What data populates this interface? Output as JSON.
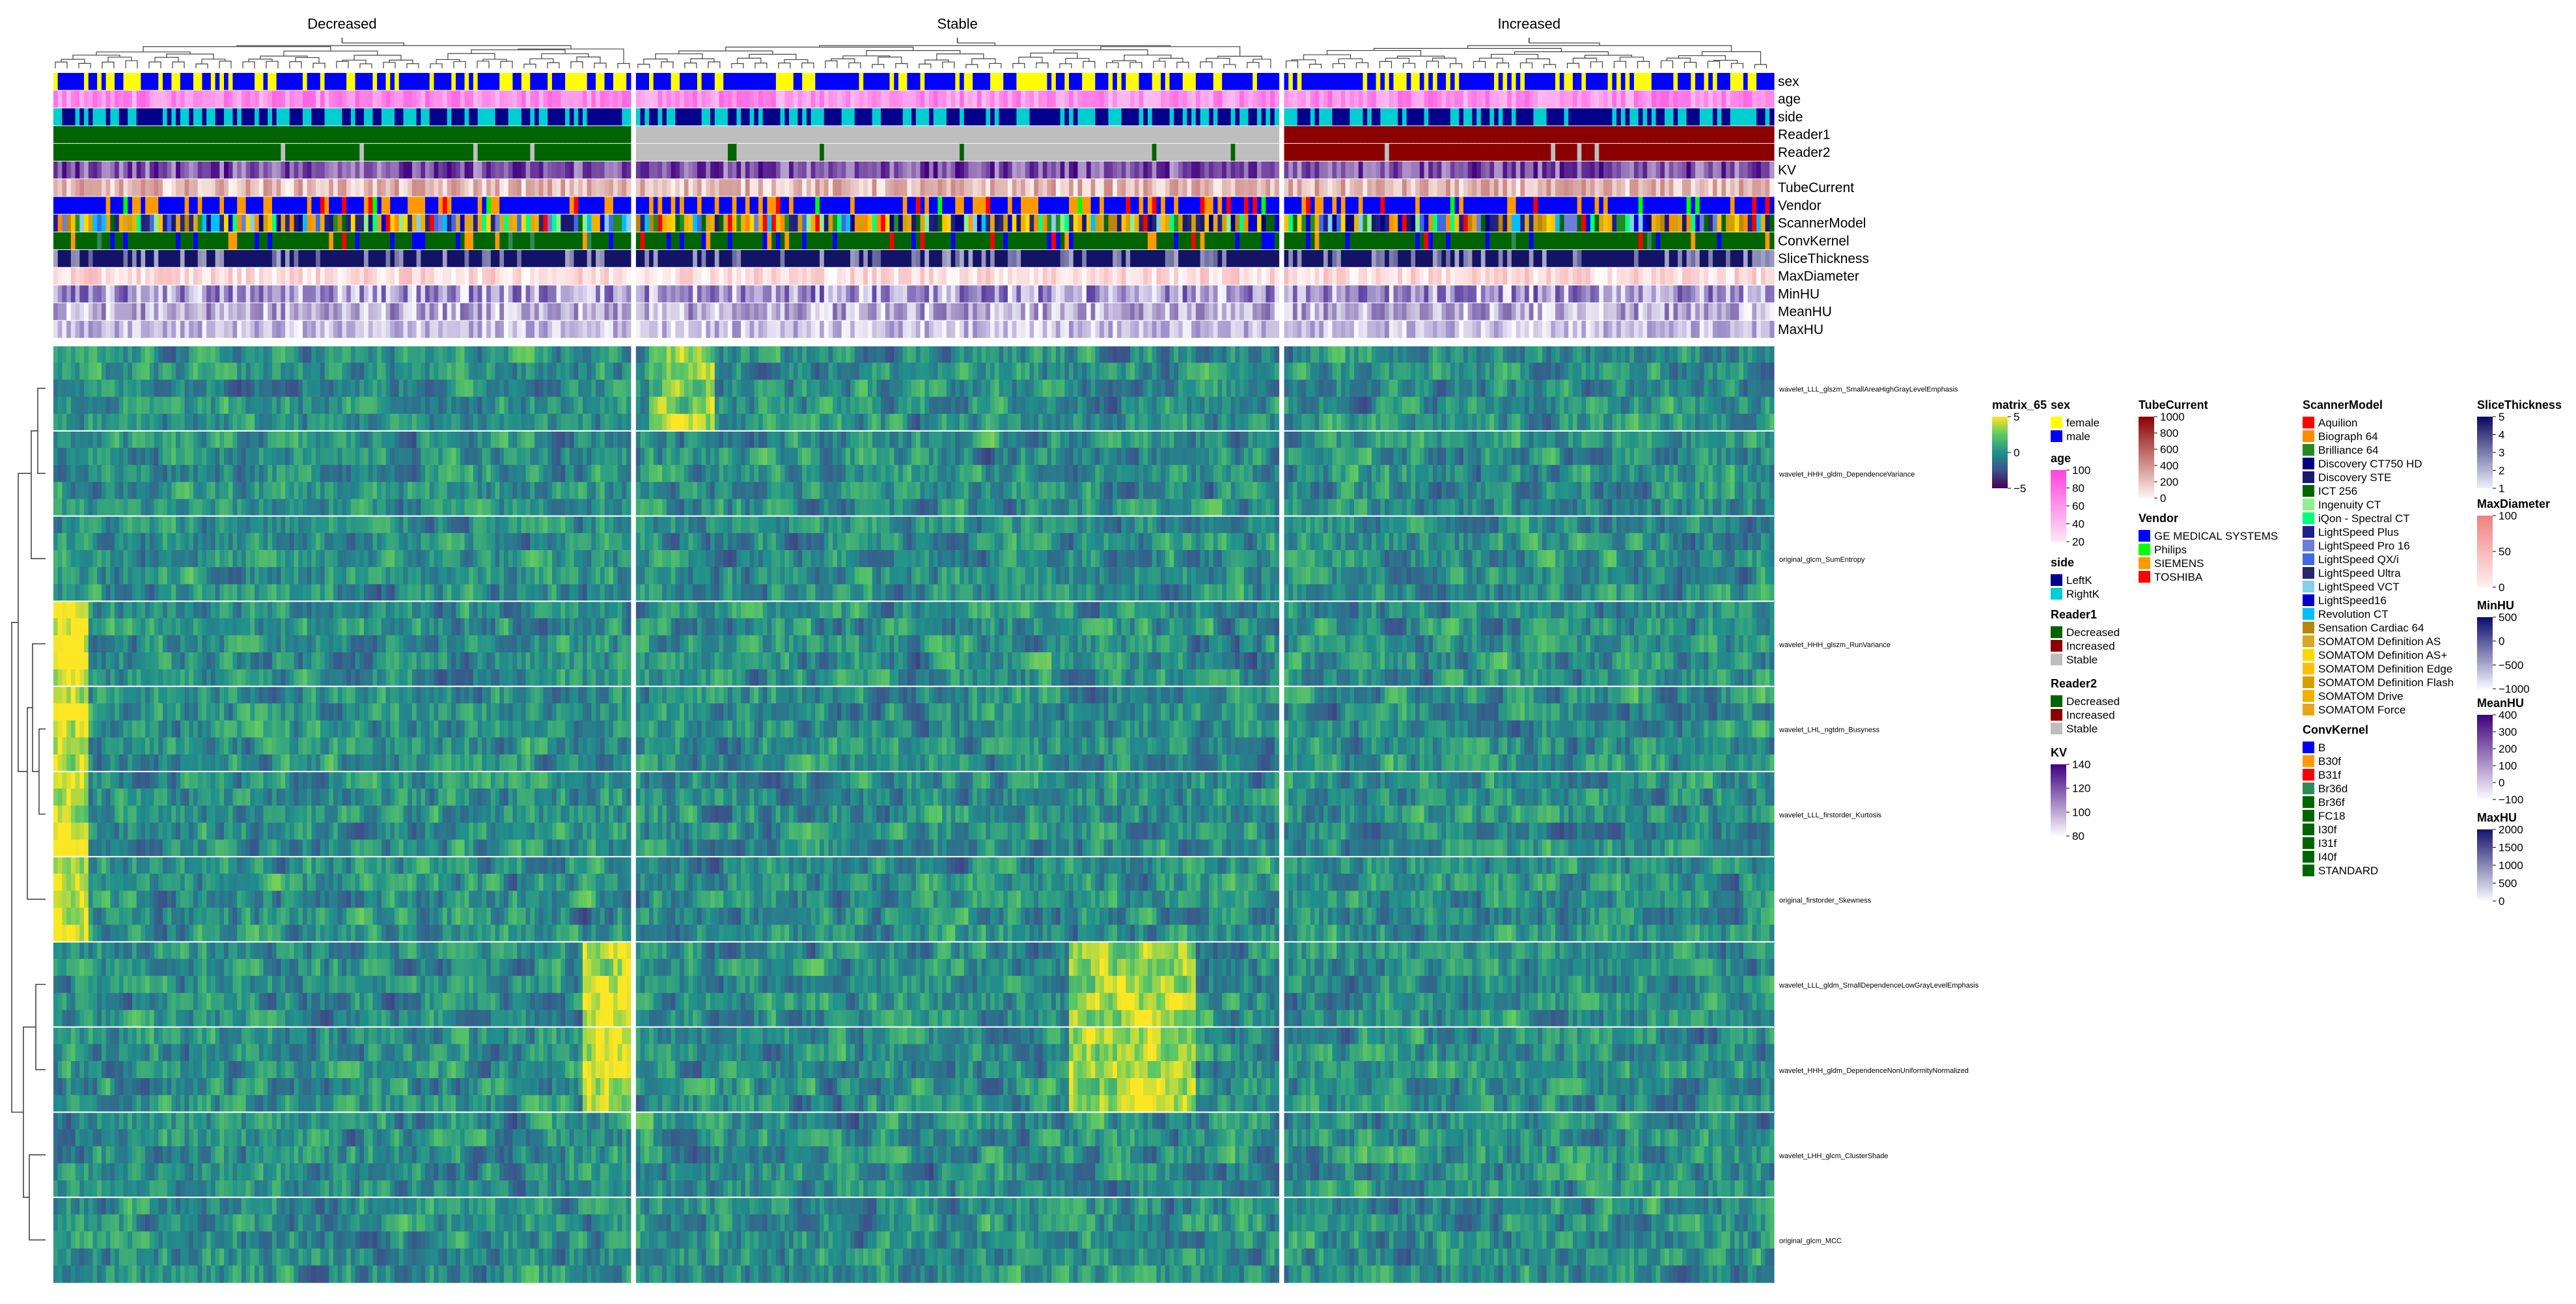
{
  "chart_data": {
    "type": "heatmap",
    "title": "",
    "column_groups": [
      "Decreased",
      "Stable",
      "Increased"
    ],
    "column_counts": [
      132,
      147,
      112
    ],
    "annotation_tracks": [
      "sex",
      "age",
      "side",
      "Reader1",
      "Reader2",
      "KV",
      "TubeCurrent",
      "Vendor",
      "ScannerModel",
      "ConvKernel",
      "SliceThickness",
      "MaxDiameter",
      "MinHU",
      "MeanHU",
      "MaxHU"
    ],
    "rows": [
      "wavelet_LLL_glszm_SmallAreaHighGrayLevelEmphasis",
      "wavelet_HHH_gldm_DependenceVariance",
      "original_glcm_SumEntropy",
      "wavelet_HHH_glszm_RunVariance",
      "wavelet_LHL_ngtdm_Busyness",
      "wavelet_LLL_firstorder_Kurtosis",
      "original_firstorder_Skewness",
      "wavelet_LLL_gldm_SmallDependenceLowGrayLevelEmphasis",
      "wavelet_HHH_gldm_DependenceNonUniformityNormalized",
      "wavelet_LHH_glcm_ClusterShade",
      "original_glcm_MCC"
    ],
    "value_scale": {
      "name": "matrix_65",
      "min": -5,
      "max": 5,
      "ticks": [
        "5",
        "0",
        "−5"
      ]
    }
  },
  "legends": {
    "sex": {
      "title": "sex",
      "items": [
        {
          "label": "female",
          "color": "#FFFF00"
        },
        {
          "label": "male",
          "color": "#0000FF"
        }
      ]
    },
    "age": {
      "title": "age",
      "ticks": [
        "100",
        "80",
        "60",
        "40",
        "20"
      ],
      "colors": [
        "#FF44DD",
        "#FFE6F8"
      ]
    },
    "side": {
      "title": "side",
      "items": [
        {
          "label": "LeftK",
          "color": "#00008B"
        },
        {
          "label": "RightK",
          "color": "#00CED1"
        }
      ]
    },
    "reader1": {
      "title": "Reader1",
      "items": [
        {
          "label": "Decreased",
          "color": "#006400"
        },
        {
          "label": "Increased",
          "color": "#8B0000"
        },
        {
          "label": "Stable",
          "color": "#BEBEBE"
        }
      ]
    },
    "reader2": {
      "title": "Reader2",
      "items": [
        {
          "label": "Decreased",
          "color": "#006400"
        },
        {
          "label": "Increased",
          "color": "#8B0000"
        },
        {
          "label": "Stable",
          "color": "#BEBEBE"
        }
      ]
    },
    "kv": {
      "title": "KV",
      "ticks": [
        "140",
        "120",
        "100",
        "80"
      ],
      "colors": [
        "#3F007D",
        "#FCFBFD"
      ]
    },
    "tube_current": {
      "title": "TubeCurrent",
      "ticks": [
        "1000",
        "800",
        "600",
        "400",
        "200",
        "0"
      ],
      "colors": [
        "#8B0000",
        "#FFF5F0"
      ]
    },
    "vendor": {
      "title": "Vendor",
      "items": [
        {
          "label": "GE MEDICAL SYSTEMS",
          "color": "#0000FF"
        },
        {
          "label": "Philips",
          "color": "#00FF00"
        },
        {
          "label": "SIEMENS",
          "color": "#FF9900"
        },
        {
          "label": "TOSHIBA",
          "color": "#FF0000"
        }
      ]
    },
    "scanner_model": {
      "title": "ScannerModel",
      "items": [
        {
          "label": "Aquilion",
          "color": "#FF0000"
        },
        {
          "label": "Biograph 64",
          "color": "#FF8C00"
        },
        {
          "label": "Brilliance 64",
          "color": "#228B22"
        },
        {
          "label": "Discovery CT750 HD",
          "color": "#000080"
        },
        {
          "label": "Discovery STE",
          "color": "#191970"
        },
        {
          "label": "ICT 256",
          "color": "#006400"
        },
        {
          "label": "Ingenuity CT",
          "color": "#90EE90"
        },
        {
          "label": "iQon - Spectral CT",
          "color": "#00FF7F"
        },
        {
          "label": "LightSpeed Plus",
          "color": "#1E1E8C"
        },
        {
          "label": "LightSpeed Pro 16",
          "color": "#6A7FDB"
        },
        {
          "label": "LightSpeed QX/i",
          "color": "#4169E1"
        },
        {
          "label": "LightSpeed Ultra",
          "color": "#27276E"
        },
        {
          "label": "LightSpeed VCT",
          "color": "#87CEEB"
        },
        {
          "label": "LightSpeed16",
          "color": "#0000CD"
        },
        {
          "label": "Revolution CT",
          "color": "#00BFFF"
        },
        {
          "label": "Sensation Cardiac 64",
          "color": "#B8860B"
        },
        {
          "label": "SOMATOM Definition AS",
          "color": "#DAA520"
        },
        {
          "label": "SOMATOM Definition AS+",
          "color": "#FFD700"
        },
        {
          "label": "SOMATOM Definition Edge",
          "color": "#FFC000"
        },
        {
          "label": "SOMATOM Definition Flash",
          "color": "#D2A000"
        },
        {
          "label": "SOMATOM Drive",
          "color": "#F0B000"
        },
        {
          "label": "SOMATOM Force",
          "color": "#E8A317"
        }
      ]
    },
    "conv_kernel": {
      "title": "ConvKernel",
      "items": [
        {
          "label": "B",
          "color": "#0000FF"
        },
        {
          "label": "B30f",
          "color": "#FF9900"
        },
        {
          "label": "B31f",
          "color": "#FF0000"
        },
        {
          "label": "Br36d",
          "color": "#2E8B57"
        },
        {
          "label": "Br36f",
          "color": "#006400"
        },
        {
          "label": "FC18",
          "color": "#006400"
        },
        {
          "label": "I30f",
          "color": "#006400"
        },
        {
          "label": "I31f",
          "color": "#006400"
        },
        {
          "label": "I40f",
          "color": "#006400"
        },
        {
          "label": "STANDARD",
          "color": "#006400"
        }
      ]
    },
    "slice_thickness": {
      "title": "SliceThickness",
      "ticks": [
        "5",
        "4",
        "3",
        "2",
        "1"
      ],
      "colors": [
        "#08085E",
        "#F0F0FA"
      ]
    },
    "max_diameter": {
      "title": "MaxDiameter",
      "ticks": [
        "100",
        "50",
        "0"
      ],
      "colors": [
        "#F08080",
        "#FFF0F0"
      ]
    },
    "min_hu": {
      "title": "MinHU",
      "ticks": [
        "500",
        "0",
        "−500",
        "−1000"
      ],
      "colors": [
        "#0B0B6E",
        "#FAF8FF"
      ]
    },
    "mean_hu": {
      "title": "MeanHU",
      "ticks": [
        "400",
        "300",
        "200",
        "100",
        "0",
        "−100"
      ],
      "colors": [
        "#3F007D",
        "#FCFBFD"
      ]
    },
    "max_hu": {
      "title": "MaxHU",
      "ticks": [
        "2000",
        "1500",
        "1000",
        "500",
        "0"
      ],
      "colors": [
        "#14146E",
        "#FCFBFD"
      ]
    }
  }
}
